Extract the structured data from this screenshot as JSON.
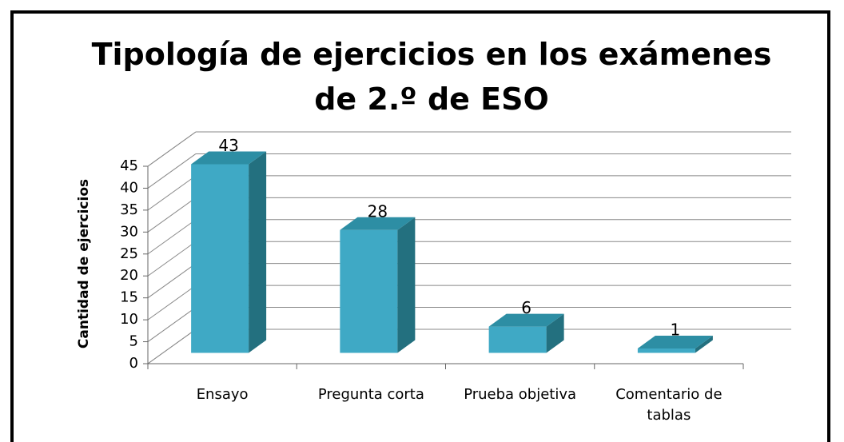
{
  "chart_data": {
    "type": "bar3d",
    "title": "Tipología de ejercicios en los exámenes de 2.º de ESO",
    "y_label": "Cantidad de ejercicios",
    "categories": [
      "Ensayo",
      "Pregunta corta",
      "Prueba objetiva",
      "Comentario de tablas"
    ],
    "values": [
      43,
      28,
      6,
      1
    ],
    "color": "#3fa9c5",
    "ylim": [
      0,
      45
    ],
    "yticks": [
      0,
      5,
      10,
      15,
      20,
      25,
      30,
      35,
      40,
      45
    ],
    "grid": true
  }
}
